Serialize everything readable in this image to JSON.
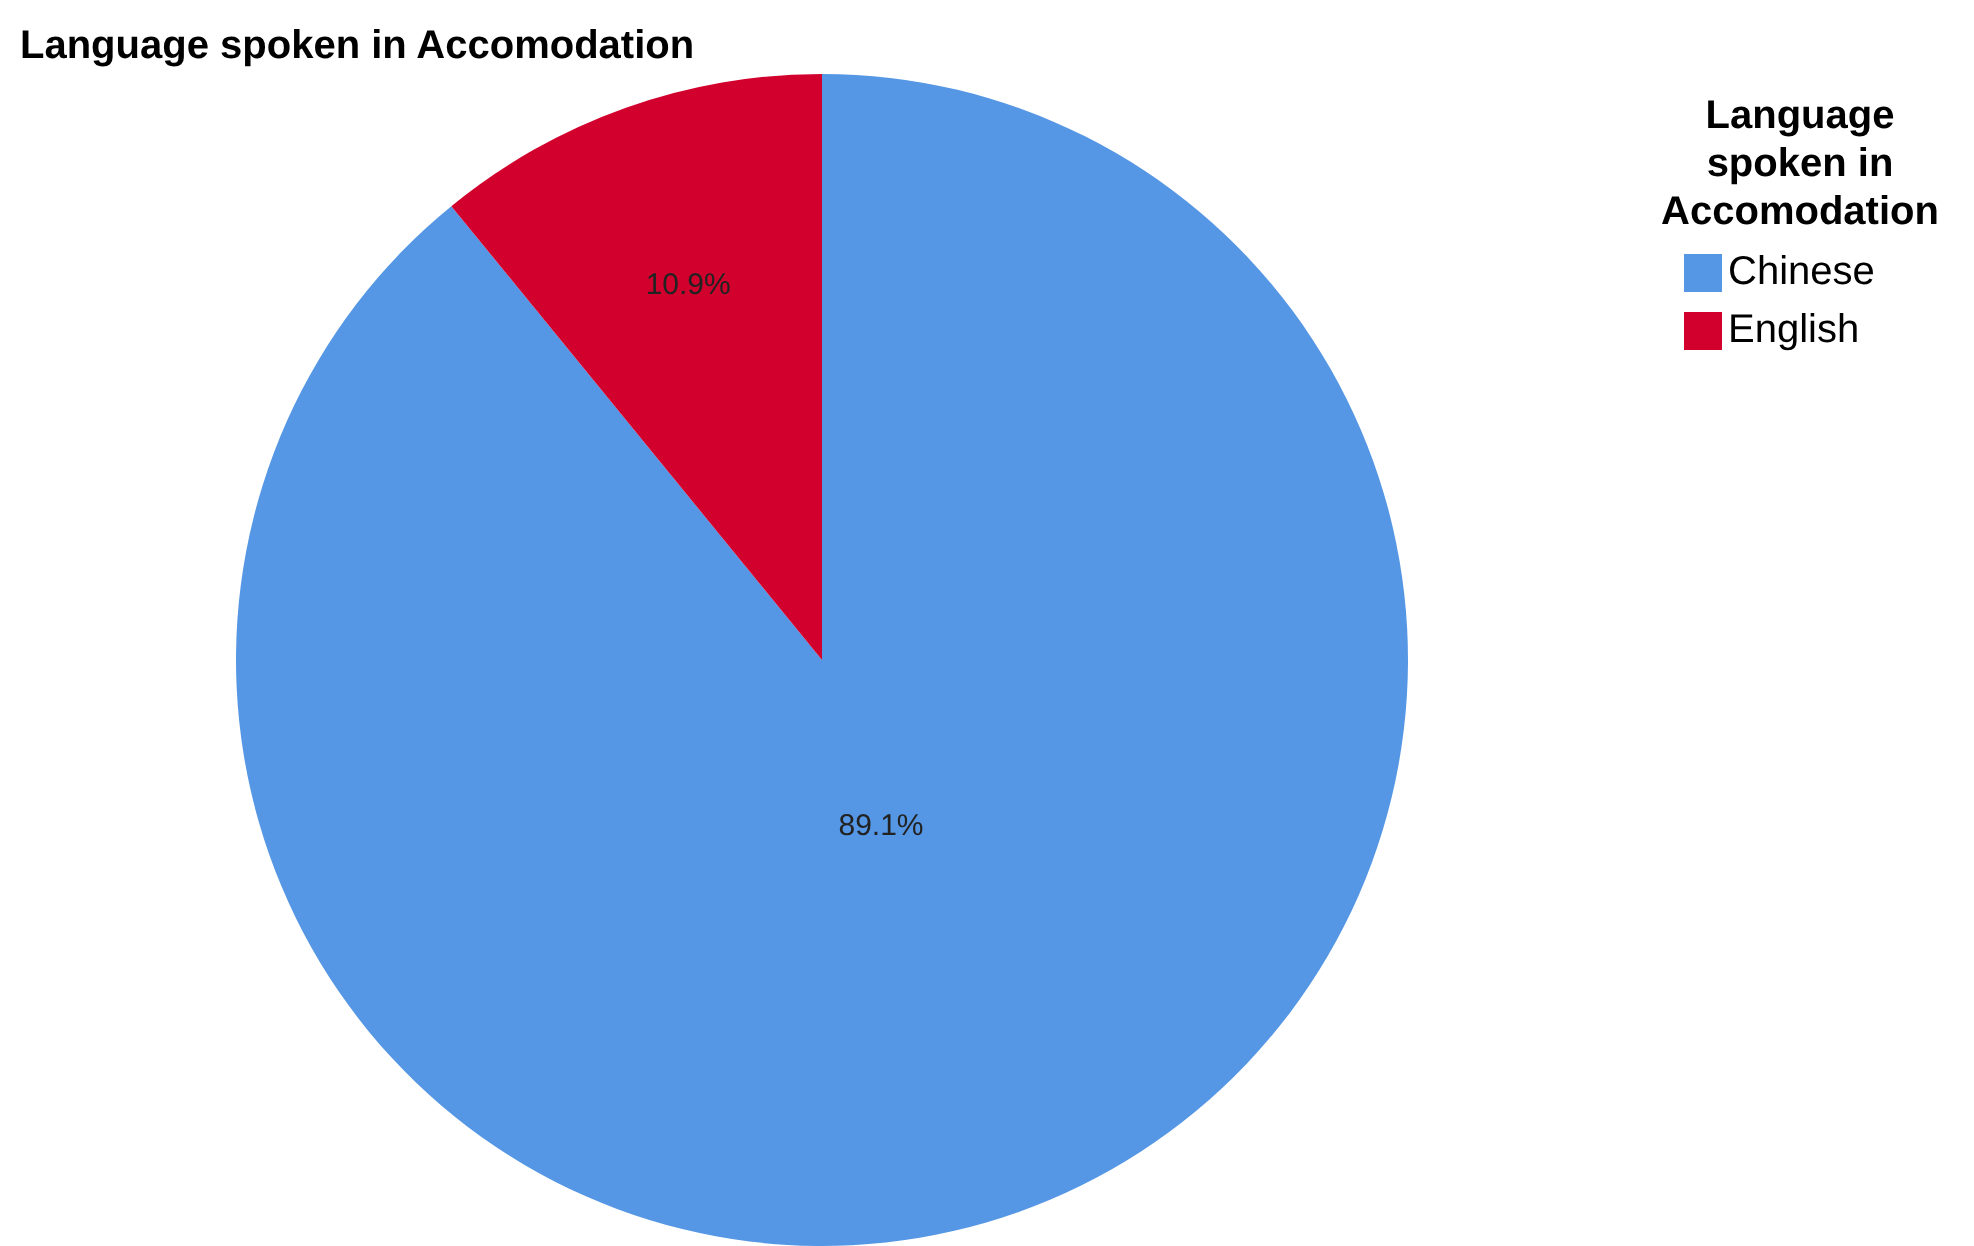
{
  "chart_data": {
    "type": "pie",
    "title": "Language spoken in Accomodation",
    "legend_title": "Language spoken in Accomodation",
    "categories": [
      "Chinese",
      "English"
    ],
    "values": [
      89.1,
      10.9
    ],
    "colors": [
      "#5597e4",
      "#d2002d"
    ],
    "value_labels": [
      "89.1%",
      "10.9%"
    ],
    "legend": "top right"
  }
}
